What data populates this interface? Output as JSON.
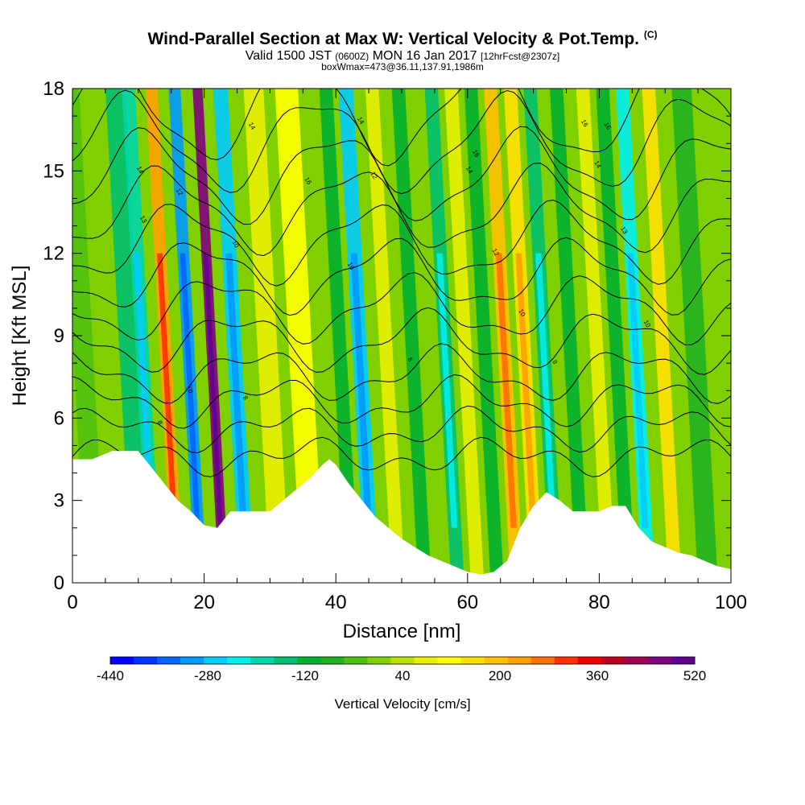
{
  "header": {
    "title": "Wind-Parallel Section at Max W: Vertical Velocity & Pot.Temp.",
    "copyright": "(C)",
    "valid_prefix": "Valid 1500 JST",
    "valid_utc": "(0600Z)",
    "valid_date": "MON 16 Jan 2017",
    "forecast": "[12hrFcst@2307z]",
    "box_info": "boxWmax=473@36.11,137.91,1986m"
  },
  "chart_data": {
    "type": "heatmap",
    "xlabel": "Distance [nm]",
    "ylabel": "Height [Kft MSL]",
    "xlim": [
      0,
      100
    ],
    "ylim": [
      0,
      18
    ],
    "x_ticks": [
      "0",
      "20",
      "40",
      "60",
      "80",
      "100"
    ],
    "y_ticks": [
      "0",
      "3",
      "6",
      "9",
      "12",
      "15",
      "18"
    ],
    "colorbar": {
      "label": "Vertical Velocity [cm/s]",
      "tick_labels": [
        "-440",
        "-280",
        "-120",
        "40",
        "200",
        "360",
        "520"
      ],
      "tick_values": [
        -440,
        -280,
        -120,
        40,
        200,
        360,
        520
      ],
      "min": -440,
      "max": 520,
      "colors": [
        "#0000ff",
        "#0033ff",
        "#0066ff",
        "#0099ff",
        "#00ccff",
        "#00eeee",
        "#00d6a8",
        "#00c070",
        "#00b030",
        "#20b020",
        "#50c010",
        "#80d000",
        "#b8e000",
        "#e8f000",
        "#ffff00",
        "#ffe000",
        "#ffc000",
        "#ffa000",
        "#ff7000",
        "#ff3000",
        "#ee0000",
        "#c00020",
        "#a00050",
        "#800080",
        "#600090"
      ]
    },
    "terrain_profile": {
      "x": [
        0,
        3,
        6,
        10,
        12,
        14,
        16,
        18,
        20,
        22,
        24,
        26,
        28,
        30,
        32,
        34,
        36,
        38,
        39,
        40,
        42,
        44,
        46,
        48,
        50,
        52,
        54,
        56,
        58,
        60,
        62,
        64,
        66,
        68,
        70,
        72,
        74,
        76,
        78,
        80,
        82,
        84,
        86,
        88,
        90,
        92,
        94,
        96,
        98,
        100
      ],
      "y": [
        4.5,
        4.5,
        4.8,
        4.8,
        4.2,
        3.6,
        3.0,
        2.6,
        2.1,
        2.0,
        2.6,
        2.6,
        2.6,
        2.6,
        3.0,
        3.4,
        3.8,
        4.3,
        4.5,
        4.3,
        3.6,
        3.0,
        2.4,
        2.0,
        1.6,
        1.3,
        1.0,
        0.8,
        0.6,
        0.4,
        0.3,
        0.4,
        0.8,
        2.0,
        2.8,
        3.3,
        3.0,
        2.6,
        2.6,
        2.6,
        2.8,
        2.8,
        2.0,
        1.5,
        1.3,
        1.1,
        1.0,
        0.8,
        0.6,
        0.5
      ]
    },
    "vertical_velocity_bands": [
      {
        "x": 2,
        "w": 3.0,
        "value": -40
      },
      {
        "x": 9,
        "w": 3.0,
        "value": -140
      },
      {
        "x": 11,
        "w": 2.0,
        "value": -200
      },
      {
        "x": 14.5,
        "w": 1.8,
        "value": 230
      },
      {
        "x": 18,
        "w": 1.8,
        "value": -300
      },
      {
        "x": 21.5,
        "w": 1.5,
        "value": 480
      },
      {
        "x": 25,
        "w": 2.2,
        "value": -260
      },
      {
        "x": 30,
        "w": 3.0,
        "value": 60
      },
      {
        "x": 35,
        "w": 3.5,
        "value": 100
      },
      {
        "x": 41,
        "w": 2.0,
        "value": -120
      },
      {
        "x": 44,
        "w": 2.2,
        "value": -260
      },
      {
        "x": 48,
        "w": 2.0,
        "value": 80
      },
      {
        "x": 52,
        "w": 2.0,
        "value": -130
      },
      {
        "x": 57,
        "w": 2.0,
        "value": -170
      },
      {
        "x": 60,
        "w": 2.0,
        "value": 70
      },
      {
        "x": 63,
        "w": 2.0,
        "value": -120
      },
      {
        "x": 66,
        "w": 2.0,
        "value": 180
      },
      {
        "x": 69,
        "w": 2.0,
        "value": 160
      },
      {
        "x": 72,
        "w": 2.0,
        "value": -160
      },
      {
        "x": 76,
        "w": 2.0,
        "value": -110
      },
      {
        "x": 80,
        "w": 2.0,
        "value": 80
      },
      {
        "x": 83,
        "w": 2.0,
        "value": -130
      },
      {
        "x": 86,
        "w": 2.0,
        "value": -220
      },
      {
        "x": 90,
        "w": 2.0,
        "value": 150
      },
      {
        "x": 95,
        "w": 3.0,
        "value": -60
      }
    ],
    "theta_contour_labels": [
      {
        "text": "14",
        "x": 10,
        "y": 15.0
      },
      {
        "text": "13",
        "x": 10.5,
        "y": 13.2
      },
      {
        "text": "12",
        "x": 16,
        "y": 14.2
      },
      {
        "text": "10",
        "x": 17.5,
        "y": 7.0
      },
      {
        "text": "8",
        "x": 13,
        "y": 5.8
      },
      {
        "text": "10",
        "x": 24.5,
        "y": 12.3
      },
      {
        "text": "8",
        "x": 26,
        "y": 6.7
      },
      {
        "text": "14",
        "x": 27,
        "y": 16.6
      },
      {
        "text": "16",
        "x": 35.5,
        "y": 14.6
      },
      {
        "text": "10",
        "x": 42,
        "y": 11.5
      },
      {
        "text": "14",
        "x": 43.5,
        "y": 16.8
      },
      {
        "text": "12",
        "x": 45.5,
        "y": 14.8
      },
      {
        "text": "8",
        "x": 51,
        "y": 8.1
      },
      {
        "text": "16",
        "x": 61,
        "y": 15.6
      },
      {
        "text": "14",
        "x": 60,
        "y": 15.0
      },
      {
        "text": "12",
        "x": 64,
        "y": 12.0
      },
      {
        "text": "10",
        "x": 68,
        "y": 9.8
      },
      {
        "text": "8",
        "x": 73,
        "y": 8.0
      },
      {
        "text": "16",
        "x": 77.5,
        "y": 16.7
      },
      {
        "text": "16",
        "x": 81,
        "y": 16.6
      },
      {
        "text": "14",
        "x": 79.5,
        "y": 15.2
      },
      {
        "text": "13",
        "x": 83.5,
        "y": 12.8
      },
      {
        "text": "10",
        "x": 87,
        "y": 9.4
      }
    ]
  }
}
